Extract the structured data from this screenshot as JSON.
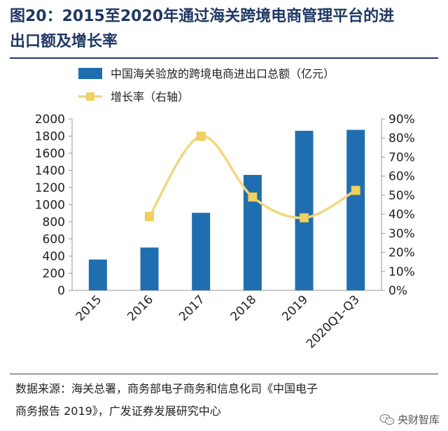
{
  "title": {
    "line1": "图20：2015至2020年通过海关跨境电商管理平台的进",
    "line2": "出口额及增长率"
  },
  "chart_data": {
    "type": "bar+line",
    "categories": [
      "2015",
      "2016",
      "2017",
      "2018",
      "2019",
      "2020Q1-Q3"
    ],
    "series": [
      {
        "name": "中国海关验放的跨境电商进出口总额（亿元）",
        "kind": "bar",
        "axis": "left",
        "values": [
          360,
          500,
          905,
          1347,
          1862,
          1873
        ]
      },
      {
        "name": "增长率（右轴）",
        "kind": "line",
        "axis": "right",
        "values": [
          null,
          38.8,
          80.9,
          49.0,
          38.1,
          52.5
        ]
      }
    ],
    "y_left": {
      "min": 0,
      "max": 2000,
      "step": 200,
      "ticks": [
        "0",
        "200",
        "400",
        "600",
        "800",
        "1000",
        "1200",
        "1400",
        "1600",
        "1800",
        "2000"
      ]
    },
    "y_right": {
      "min": 0,
      "max": 90,
      "step": 10,
      "ticks": [
        "0%",
        "10%",
        "20%",
        "30%",
        "40%",
        "50%",
        "60%",
        "70%",
        "80%",
        "90%"
      ]
    },
    "grid": false,
    "legend_position": "top"
  },
  "colors": {
    "bar": "#1f6fb0",
    "line": "#f2d77e",
    "marker": "#f0d060",
    "title": "#1f3864",
    "axis": "#999999"
  },
  "source": {
    "line1": "数据来源：海关总署，商务部电子商务和信息化司《中国电子",
    "line2": "商务报告 2019》，广发证券发展研究中心"
  },
  "watermark": {
    "icon": "wechat-icon",
    "text": "央财智库"
  }
}
